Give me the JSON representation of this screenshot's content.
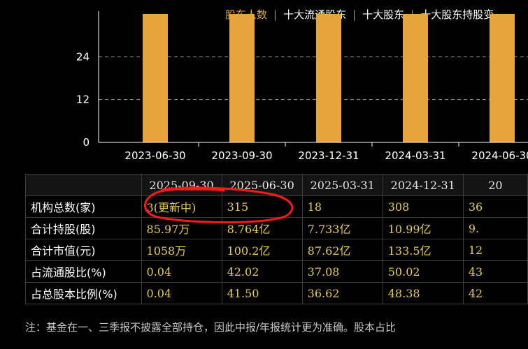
{
  "tabs": [
    {
      "label": "股东人数",
      "active": true
    },
    {
      "label": "十大流通股东",
      "active": false
    },
    {
      "label": "十大股东",
      "active": false
    },
    {
      "label": "十大股东持股变",
      "active": false
    }
  ],
  "chart_data": {
    "type": "bar",
    "categories": [
      "2023-06-30",
      "2023-09-30",
      "2023-12-31",
      "2024-03-31",
      "2024-06-30"
    ],
    "values": [
      36,
      36,
      36,
      36,
      36
    ],
    "yticks": [
      "0",
      "12",
      "24"
    ],
    "ylim": [
      0,
      36
    ],
    "grid": "dashed horizontal",
    "colors": {
      "bar": "#e8a33c",
      "axis": "#ffffff",
      "grid": "#999999"
    }
  },
  "table": {
    "columns": [
      "",
      "2025-09-30",
      "2025-06-30",
      "2025-03-31",
      "2024-12-31",
      "20"
    ],
    "rows": [
      {
        "label": "机构总数(家)",
        "values": [
          "3(更新中)",
          "315",
          "18",
          "308",
          "36"
        ]
      },
      {
        "label": "合计持股(股)",
        "values": [
          "85.97万",
          "8.764亿",
          "7.733亿",
          "10.99亿",
          "9."
        ]
      },
      {
        "label": "合计市值(元)",
        "values": [
          "1058万",
          "100.2亿",
          "87.62亿",
          "133.5亿",
          "12"
        ]
      },
      {
        "label": "占流通股比(%)",
        "values": [
          "0.04",
          "42.02",
          "37.08",
          "50.02",
          "43"
        ]
      },
      {
        "label": "占总股本比例(%)",
        "values": [
          "0.04",
          "41.50",
          "36.62",
          "48.38",
          "42"
        ]
      }
    ]
  },
  "note": "注：基金在一、三季报不披露全部持仓，因此中报/年报统计更为准确。股本占比",
  "colors": {
    "accent": "#e8a33c",
    "value_text": "#e6cb58",
    "annotation": "#ff1a1a"
  }
}
